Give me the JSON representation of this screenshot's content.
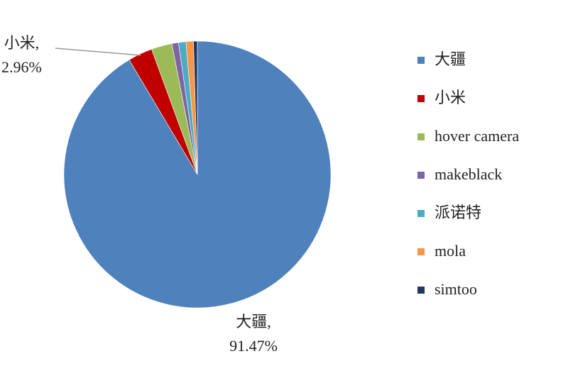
{
  "chart_data": {
    "type": "pie",
    "categories": [
      "大疆",
      "小米",
      "hover camera",
      "makeblack",
      "派诺特",
      "mola",
      "simtoo"
    ],
    "values": [
      91.47,
      2.96,
      2.5,
      0.8,
      0.9,
      0.9,
      0.47
    ],
    "value_labels": [
      "大疆,\n91.47%",
      "小米,\n2.96%",
      null,
      null,
      null,
      null,
      null
    ],
    "colors": [
      "#4f81bd",
      "#c00000",
      "#9bbb59",
      "#8064a2",
      "#4bacc6",
      "#f79646",
      "#1f3864"
    ],
    "legend": "right"
  }
}
